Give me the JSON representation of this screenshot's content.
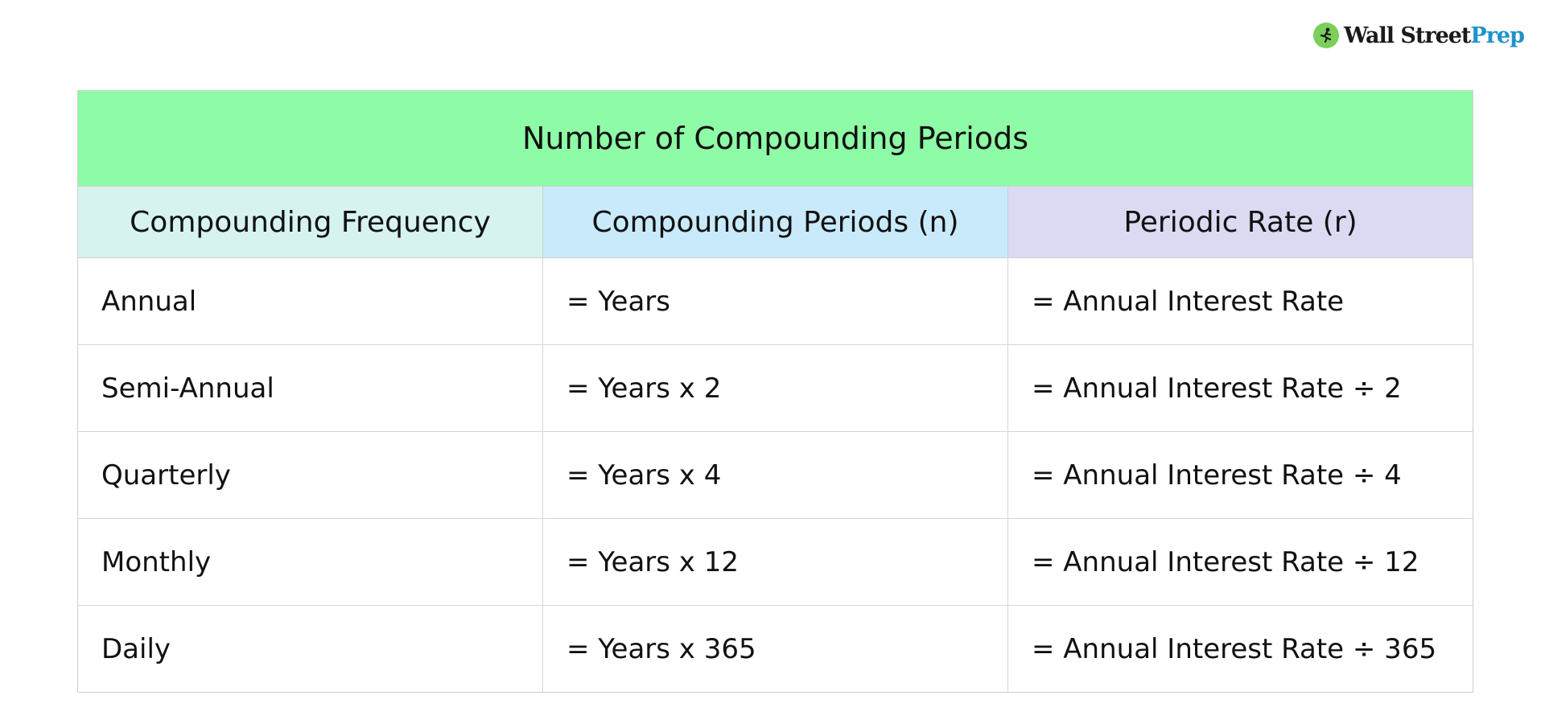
{
  "logo": {
    "word1": "Wall Street",
    "word2": "Prep",
    "icon": "runner-icon",
    "colors": {
      "mark": "#7ccf5a",
      "prep": "#1f93c9"
    }
  },
  "table": {
    "title": "Number of Compounding Periods",
    "headers": [
      "Compounding Frequency",
      "Compounding Periods (n)",
      "Periodic Rate (r)"
    ],
    "rows": [
      [
        "Annual",
        "= Years",
        "= Annual Interest Rate"
      ],
      [
        "Semi-Annual",
        "= Years x 2",
        "= Annual Interest Rate ÷ 2"
      ],
      [
        "Quarterly",
        "= Years x 4",
        "= Annual Interest Rate ÷ 4"
      ],
      [
        "Monthly",
        "= Years x 12",
        "= Annual Interest Rate ÷ 12"
      ],
      [
        "Daily",
        "= Years x 365",
        "= Annual Interest Rate ÷ 365"
      ]
    ],
    "colors": {
      "title_bg": "#8efca6",
      "header_bg": [
        "#d6f3f0",
        "#c8eafb",
        "#dbdaf2"
      ],
      "border": "#cfcfcf"
    }
  }
}
